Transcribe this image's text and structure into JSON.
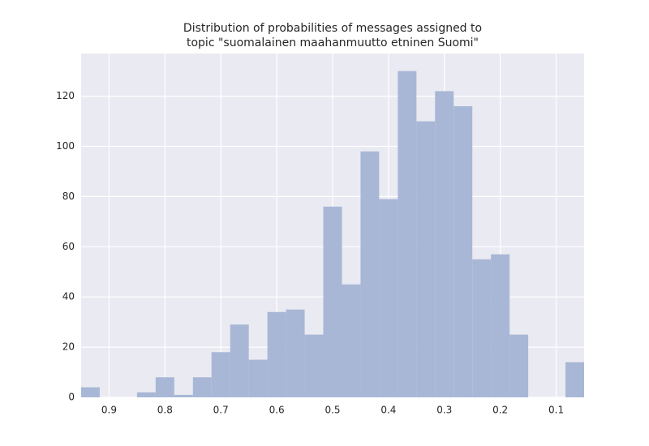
{
  "chart_data": {
    "type": "histogram",
    "title": [
      "Distribution of probabilities of messages assigned to",
      "topic \"suomalainen maahanmuutto etninen Suomi\""
    ],
    "bins": [
      0.95,
      0.9167,
      0.8833,
      0.85,
      0.8167,
      0.7833,
      0.75,
      0.7167,
      0.6833,
      0.65,
      0.6167,
      0.5833,
      0.55,
      0.5167,
      0.4833,
      0.45,
      0.4167,
      0.3833,
      0.35,
      0.3167,
      0.2833,
      0.25,
      0.2167,
      0.1833,
      0.15,
      0.1167,
      0.0833,
      0.05
    ],
    "values": [
      4,
      0,
      0,
      2,
      8,
      1,
      8,
      18,
      29,
      15,
      34,
      35,
      25,
      76,
      45,
      98,
      79,
      130,
      110,
      122,
      116,
      55,
      57,
      25,
      0,
      0,
      14
    ],
    "color": "#a8b7d6",
    "xlim": [
      0.95,
      0.05
    ],
    "xticks": [
      0.9,
      0.8,
      0.7,
      0.6,
      0.5,
      0.4,
      0.3,
      0.2,
      0.1
    ],
    "ylim": [
      0,
      137
    ],
    "yticks": [
      0,
      20,
      40,
      60,
      80,
      100,
      120
    ],
    "grid": true
  }
}
